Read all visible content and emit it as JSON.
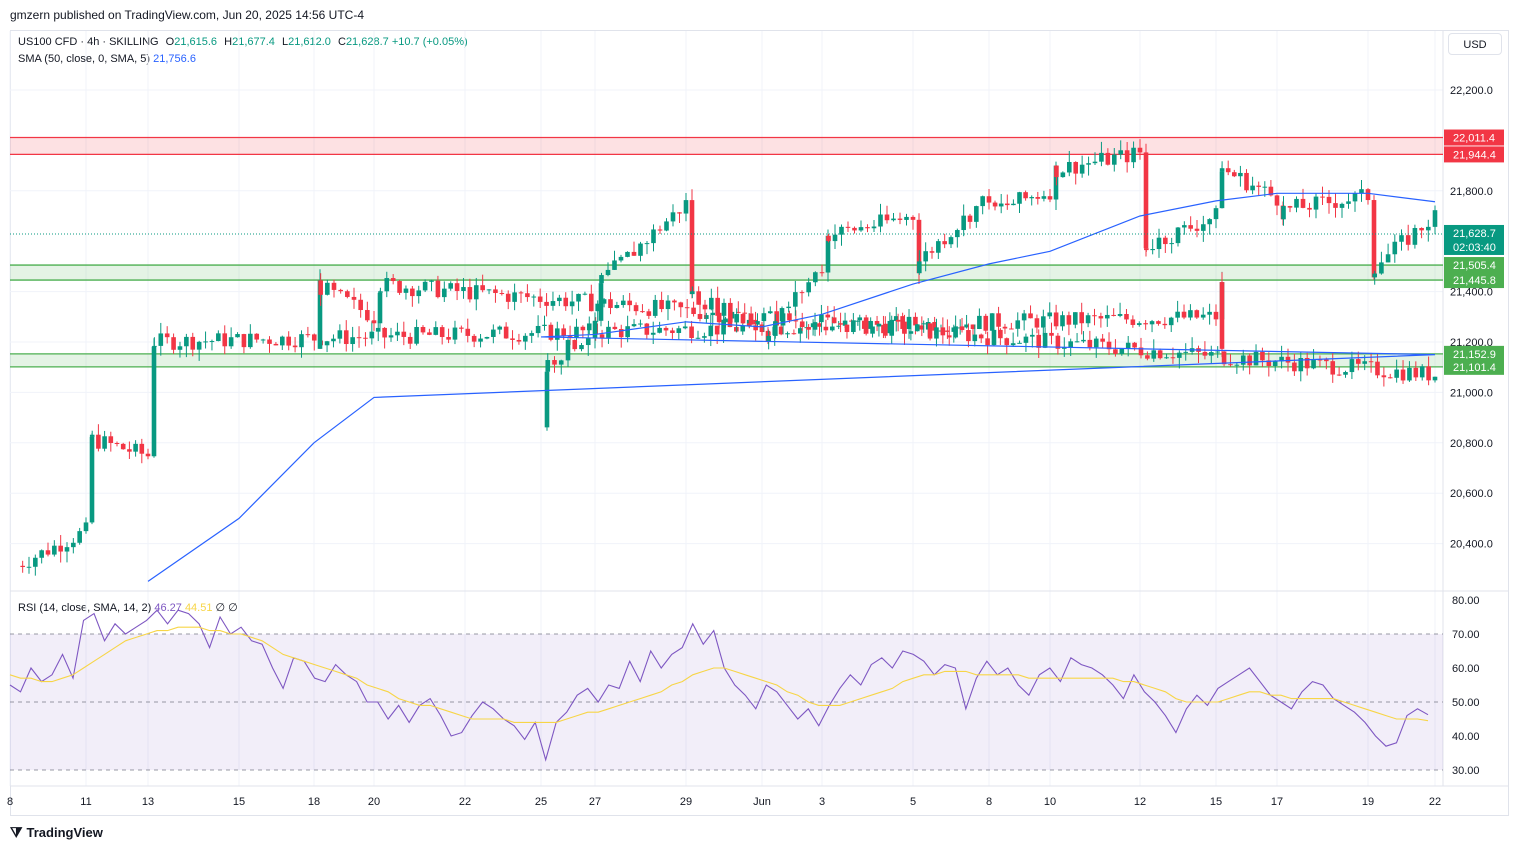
{
  "header": {
    "published": "gmzern published on TradingView.com, Jun 20, 2025 14:56 UTC-4"
  },
  "legend": {
    "symbol": "US100 CFD · 4h · SKILLING",
    "o_label": "O",
    "o": "21,615.6",
    "h_label": "H",
    "h": "21,677.4",
    "l_label": "L",
    "l": "21,612.0",
    "c_label": "C",
    "c": "21,628.7",
    "change": "+10.7 (+0.05%)",
    "sma_label": "SMA (50, close, 0, SMA, 5)",
    "sma_value": "21,756.6",
    "rsi_label": "RSI (14, close, SMA, 14, 2)",
    "rsi_value": "46.27",
    "rsi_ma_value": "44.51",
    "rsi_extra": "∅ ∅"
  },
  "currency": "USD",
  "footer": {
    "brand": "TradingView"
  },
  "colors": {
    "up": "#089981",
    "down": "#f23645",
    "sma": "#2962ff",
    "rsi": "#7e57c2",
    "rsi_ma": "#f7d547",
    "resistance_zone": "#f23645",
    "support_zone": "#4caf50"
  },
  "chart_data": [
    {
      "type": "candlestick",
      "title": "US100 CFD · 4h · SKILLING",
      "ylim": [
        20250,
        22400
      ],
      "y_ticks": [
        "22,200.0",
        "21,800.0",
        "21,400.0",
        "21,200.0",
        "21,000.0",
        "20,800.0",
        "20,600.0",
        "20,400.0"
      ],
      "y_tick_values": [
        22200,
        21800,
        21400,
        21200,
        21000,
        20800,
        20600,
        20400
      ],
      "x_ticks": [
        "8",
        "11",
        "13",
        "15",
        "18",
        "20",
        "22",
        "25",
        "27",
        "29",
        "Jun",
        "3",
        "5",
        "8",
        "10",
        "12",
        "15",
        "17",
        "19",
        "22"
      ],
      "zones": [
        {
          "kind": "resistance",
          "from": 21944.4,
          "to": 22011.4,
          "labels": [
            "22,011.4",
            "21,944.4"
          ]
        },
        {
          "kind": "support",
          "from": 21445.8,
          "to": 21505.4,
          "labels": [
            "21,505.4",
            "21,445.8"
          ]
        },
        {
          "kind": "support",
          "from": 21101.4,
          "to": 21152.9,
          "labels": [
            "21,152.9",
            "21,101.4"
          ]
        }
      ],
      "last_price": {
        "value": 21628.7,
        "label": "21,628.7",
        "countdown": "02:03:40"
      },
      "anchors": [
        {
          "x": "8",
          "price": 20300
        },
        {
          "x": "11",
          "price": 20450
        },
        {
          "x": "11",
          "price": 20820
        },
        {
          "x": "13",
          "price": 20750
        },
        {
          "x": "13",
          "price": 21200
        },
        {
          "x": "15",
          "price": 21300
        },
        {
          "x": "15",
          "price": 21420
        },
        {
          "x": "18",
          "price": 21180
        },
        {
          "x": "18",
          "price": 21430
        },
        {
          "x": "20",
          "price": 21300
        },
        {
          "x": "20",
          "price": 21430
        },
        {
          "x": "22",
          "price": 21070
        },
        {
          "x": "22",
          "price": 21150
        },
        {
          "x": "25",
          "price": 20860
        },
        {
          "x": "25",
          "price": 21100
        },
        {
          "x": "27",
          "price": 21250
        },
        {
          "x": "27",
          "price": 21420
        },
        {
          "x": "29",
          "price": 21750
        },
        {
          "x": "29",
          "price": 21400
        },
        {
          "x": "Jun",
          "price": 21250
        },
        {
          "x": "Jun",
          "price": 21220
        },
        {
          "x": "3",
          "price": 21500
        },
        {
          "x": "3",
          "price": 21620
        },
        {
          "x": "5",
          "price": 21700
        },
        {
          "x": "5",
          "price": 21500
        },
        {
          "x": "8",
          "price": 21780
        },
        {
          "x": "8",
          "price": 21720
        },
        {
          "x": "10",
          "price": 21800
        },
        {
          "x": "10",
          "price": 21880
        },
        {
          "x": "12",
          "price": 21950
        },
        {
          "x": "12",
          "price": 21570
        },
        {
          "x": "15",
          "price": 21700
        },
        {
          "x": "15",
          "price": 21900
        },
        {
          "x": "17",
          "price": 21770
        },
        {
          "x": "17",
          "price": 21720
        },
        {
          "x": "19",
          "price": 21780
        },
        {
          "x": "19",
          "price": 21480
        },
        {
          "x": "22",
          "price": 21700
        },
        {
          "x": "22",
          "price": 21628.7
        }
      ],
      "sma": {
        "name": "SMA (50, close, 0, SMA, 5)",
        "points": [
          {
            "x": "13",
            "price": 20250
          },
          {
            "x": "15",
            "price": 20500
          },
          {
            "x": "18",
            "price": 20800
          },
          {
            "x": "20",
            "price": 20980
          },
          {
            "x": "22",
            "price": 21150
          },
          {
            "x": "25",
            "price": 21220
          },
          {
            "x": "27",
            "price": 21230
          },
          {
            "x": "29",
            "price": 21280
          },
          {
            "x": "Jun",
            "price": 21260
          },
          {
            "x": "3",
            "price": 21310
          },
          {
            "x": "5",
            "price": 21430
          },
          {
            "x": "8",
            "price": 21510
          },
          {
            "x": "10",
            "price": 21560
          },
          {
            "x": "12",
            "price": 21700
          },
          {
            "x": "15",
            "price": 21760
          },
          {
            "x": "17",
            "price": 21790
          },
          {
            "x": "19",
            "price": 21790
          },
          {
            "x": "22",
            "price": 21756.6
          }
        ]
      }
    },
    {
      "type": "line",
      "title": "RSI (14, close, SMA, 14, 2)",
      "ylim": [
        27,
        81
      ],
      "y_ticks": [
        "80.00",
        "70.00",
        "60.00",
        "50.00",
        "40.00",
        "30.00"
      ],
      "y_tick_values": [
        80,
        70,
        60,
        50,
        40,
        30
      ],
      "bands": [
        30,
        50,
        70
      ],
      "series": [
        {
          "name": "RSI",
          "values": [
            55,
            53,
            60,
            56,
            58,
            64,
            57,
            74,
            76,
            68,
            73,
            70,
            72,
            74,
            77,
            73,
            77,
            76,
            73,
            66,
            75,
            70,
            72,
            68,
            67,
            60,
            54,
            63,
            62,
            57,
            56,
            61,
            58,
            56,
            50,
            50,
            45,
            49,
            44,
            49,
            51,
            46,
            40,
            41,
            46,
            50,
            48,
            45,
            43,
            39,
            44,
            33,
            44,
            47,
            52,
            54,
            50,
            55,
            54,
            62,
            56,
            65,
            60,
            64,
            66,
            73,
            67,
            71,
            60,
            55,
            52,
            48,
            55,
            53,
            49,
            45,
            48,
            43,
            49,
            54,
            58,
            55,
            61,
            63,
            60,
            65,
            64,
            62,
            58,
            61,
            60,
            48,
            57,
            62,
            58,
            60,
            55,
            52,
            58,
            60,
            56,
            63,
            61,
            60,
            58,
            55,
            51,
            58,
            53,
            50,
            46,
            41,
            48,
            52,
            49,
            54,
            56,
            58,
            60,
            56,
            52,
            50,
            48,
            53,
            56,
            55,
            51,
            49,
            47,
            44,
            40,
            37,
            38,
            46,
            48,
            46.27
          ]
        },
        {
          "name": "RSI MA",
          "values": [
            58,
            57,
            57,
            56,
            56,
            57,
            58,
            60,
            62,
            64,
            66,
            68,
            69,
            70,
            71,
            71,
            72,
            72,
            72,
            71,
            71,
            70,
            70,
            69,
            68,
            66,
            64,
            63,
            62,
            61,
            60,
            59,
            58,
            57,
            55,
            54,
            53,
            51,
            50,
            49,
            49,
            48,
            47,
            46,
            45,
            45,
            45,
            45,
            44,
            44,
            44,
            44,
            44,
            45,
            46,
            47,
            47,
            48,
            49,
            50,
            51,
            52,
            53,
            55,
            56,
            58,
            59,
            60,
            60,
            59,
            58,
            57,
            56,
            55,
            53,
            52,
            50,
            49,
            49,
            49,
            50,
            51,
            52,
            53,
            54,
            56,
            57,
            58,
            58,
            59,
            59,
            59,
            58,
            58,
            58,
            58,
            58,
            57,
            57,
            57,
            57,
            57,
            57,
            57,
            57,
            57,
            56,
            56,
            55,
            54,
            53,
            51,
            50,
            50,
            50,
            50,
            51,
            52,
            53,
            53,
            52,
            52,
            51,
            51,
            51,
            51,
            51,
            50,
            49,
            48,
            47,
            46,
            45,
            45,
            45,
            44.51
          ]
        }
      ]
    }
  ]
}
